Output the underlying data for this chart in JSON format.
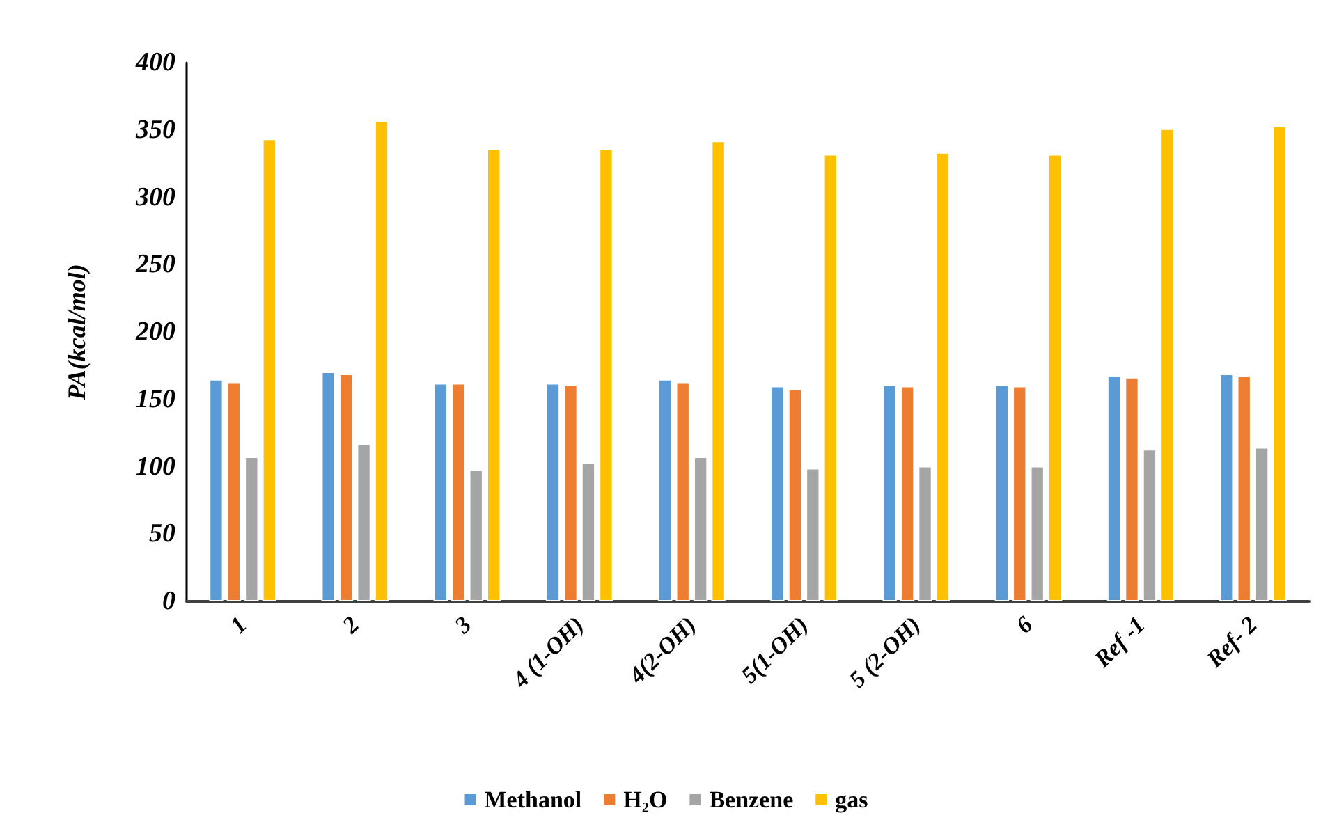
{
  "chart_data": {
    "type": "bar",
    "ylabel": "PA(kcal/mol)",
    "categories": [
      "1",
      "2",
      "3",
      "4 (1-OH)",
      "4(2-OH)",
      "5(1-OH)",
      "5 (2-OH)",
      "6",
      "Ref -1",
      "Ref- 2"
    ],
    "series": [
      {
        "name": "Methanol",
        "color": "#5b9bd5",
        "values": [
          165,
          170.5,
          162,
          162,
          165,
          160,
          161,
          161,
          168,
          169
        ]
      },
      {
        "name": "H₂O",
        "color": "#ed7d31",
        "values": [
          163,
          169,
          162,
          161,
          163,
          158,
          160,
          160,
          166.5,
          168
        ]
      },
      {
        "name": "Benzene",
        "color": "#a5a5a5",
        "values": [
          107.5,
          117,
          98,
          103,
          107.5,
          99,
          100.5,
          100.5,
          113,
          114.5
        ]
      },
      {
        "name": "gas",
        "color": "#ffc000",
        "values": [
          343.5,
          357,
          336,
          336,
          342,
          332,
          333.5,
          332,
          351,
          353
        ]
      }
    ],
    "ylim": [
      0,
      400
    ],
    "yticks": [
      0,
      50,
      100,
      150,
      200,
      250,
      300,
      350,
      400
    ],
    "grid": false,
    "legend": "bottom"
  }
}
